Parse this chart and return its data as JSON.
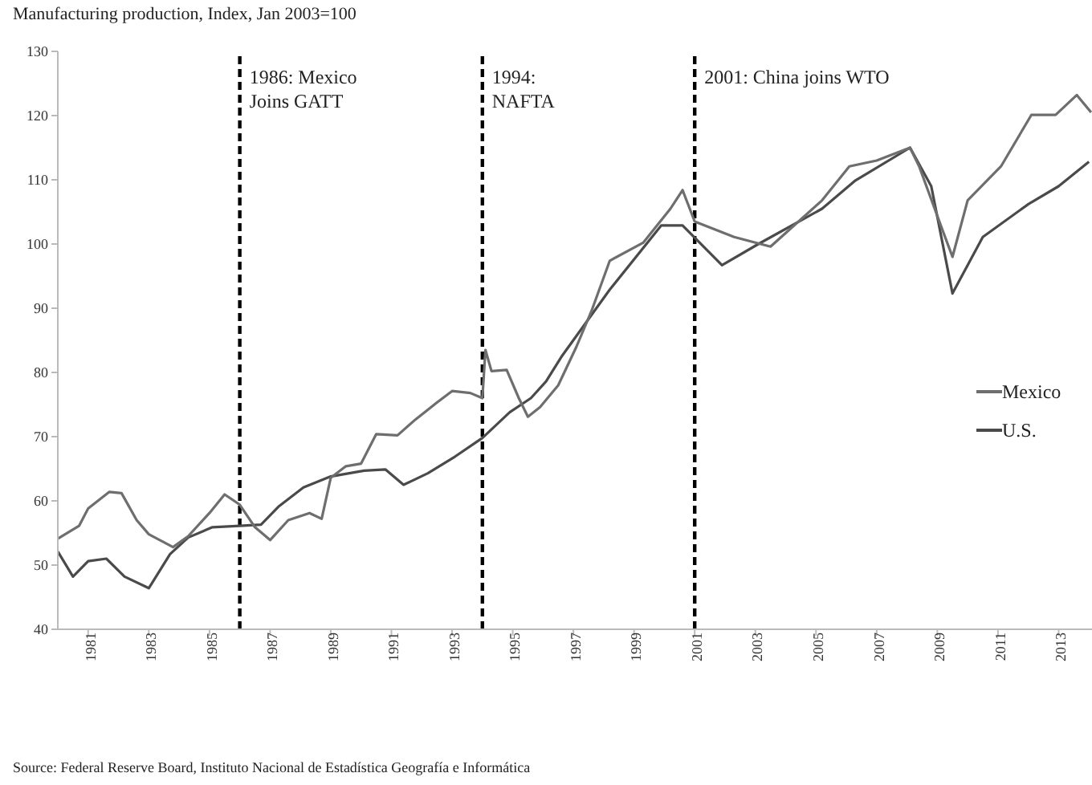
{
  "chart_data": {
    "type": "line",
    "title": "Manufacturing production, Index, Jan 2003=100",
    "annotations": [
      "Source: Federal Reserve Board, Instituto Nacional de Estadística Geografía e Informática"
    ],
    "xlim": [
      1980,
      2014.1
    ],
    "xticks": [
      1981,
      1983,
      1985,
      1987,
      1989,
      1991,
      1993,
      1995,
      1997,
      1999,
      2001,
      2003,
      2005,
      2007,
      2009,
      2011,
      2013
    ],
    "ylim": [
      40,
      130
    ],
    "yticks": [
      40,
      50,
      60,
      70,
      80,
      90,
      100,
      110,
      120,
      130
    ],
    "grid": false,
    "legend": "right",
    "marker": "none",
    "line_style": "solid",
    "ref_lines": [
      {
        "axis": "x",
        "value": 1986,
        "label": "1986: Mexico\nJoins GATT",
        "color": "#000000",
        "line_style": "dashed"
      },
      {
        "axis": "x",
        "value": 1994,
        "label": "1994:\nNAFTA",
        "color": "#000000",
        "line_style": "dashed"
      },
      {
        "axis": "x",
        "value": 2001,
        "label": "2001: China joins WTO",
        "color": "#000000",
        "line_style": "dashed"
      }
    ],
    "series": [
      {
        "name": "U.S.",
        "color": "#4a4a4a",
        "x": [
          1980,
          1980.5,
          1981,
          1981.6,
          1982.2,
          1983,
          1983.7,
          1984.3,
          1985.1,
          1986,
          1986.7,
          1987.3,
          1988.1,
          1989,
          1990.1,
          1990.8,
          1991.4,
          1992.2,
          1993.1,
          1994,
          1994.9,
          1995.6,
          1996.1,
          1996.6,
          1998.2,
          1999.9,
          2000.6,
          2001.9,
          2003.1,
          2005.2,
          2006.3,
          2008.1,
          2008.8,
          2009.5,
          2010.5,
          2012,
          2013,
          2014
        ],
        "values": [
          52.1,
          48.2,
          50.6,
          51,
          48.2,
          46.4,
          51.7,
          54.3,
          55.9,
          56.1,
          56.3,
          59.2,
          62.1,
          63.8,
          64.7,
          64.9,
          62.5,
          64.3,
          66.9,
          69.8,
          73.8,
          76,
          78.6,
          82.4,
          92.9,
          102.9,
          102.9,
          96.7,
          100,
          105.5,
          109.9,
          115,
          109,
          92.3,
          101.1,
          106.2,
          109,
          112.8
        ]
      },
      {
        "name": "Mexico",
        "color": "#6e6e6e",
        "x": [
          1980,
          1980.7,
          1981,
          1981.7,
          1982.1,
          1982.6,
          1983,
          1983.8,
          1984.3,
          1985,
          1985.5,
          1986,
          1986.5,
          1987,
          1987.6,
          1988.3,
          1988.7,
          1989,
          1989.5,
          1990,
          1990.5,
          1991.2,
          1991.8,
          1992.5,
          1993,
          1993.6,
          1994,
          1994.1,
          1994.3,
          1994.8,
          1995.2,
          1995.5,
          1995.9,
          1996.5,
          1997.1,
          1997.6,
          1998.2,
          1999.3,
          2000.2,
          2000.6,
          2001,
          2002.3,
          2003.5,
          2005.2,
          2006.1,
          2007,
          2008.1,
          2008.4,
          2009.2,
          2009.5,
          2010,
          2011.1,
          2012.1,
          2012.9,
          2013.6,
          2014.07
        ],
        "values": [
          54.1,
          56.1,
          58.8,
          61.4,
          61.2,
          57,
          54.8,
          52.8,
          54.5,
          58.1,
          61,
          59.4,
          55.9,
          53.9,
          57,
          58.1,
          57.2,
          63.6,
          65.4,
          65.8,
          70.4,
          70.2,
          72.7,
          75.3,
          77.1,
          76.8,
          76,
          83.5,
          80.2,
          80.4,
          76,
          73.1,
          74.6,
          78,
          84,
          89.6,
          97.4,
          100.2,
          105.5,
          108.4,
          103.5,
          101.1,
          99.6,
          106.8,
          112.1,
          113,
          115,
          112.1,
          101.8,
          98,
          106.8,
          112.1,
          120.1,
          120.1,
          123.2,
          120.5
        ]
      }
    ]
  }
}
